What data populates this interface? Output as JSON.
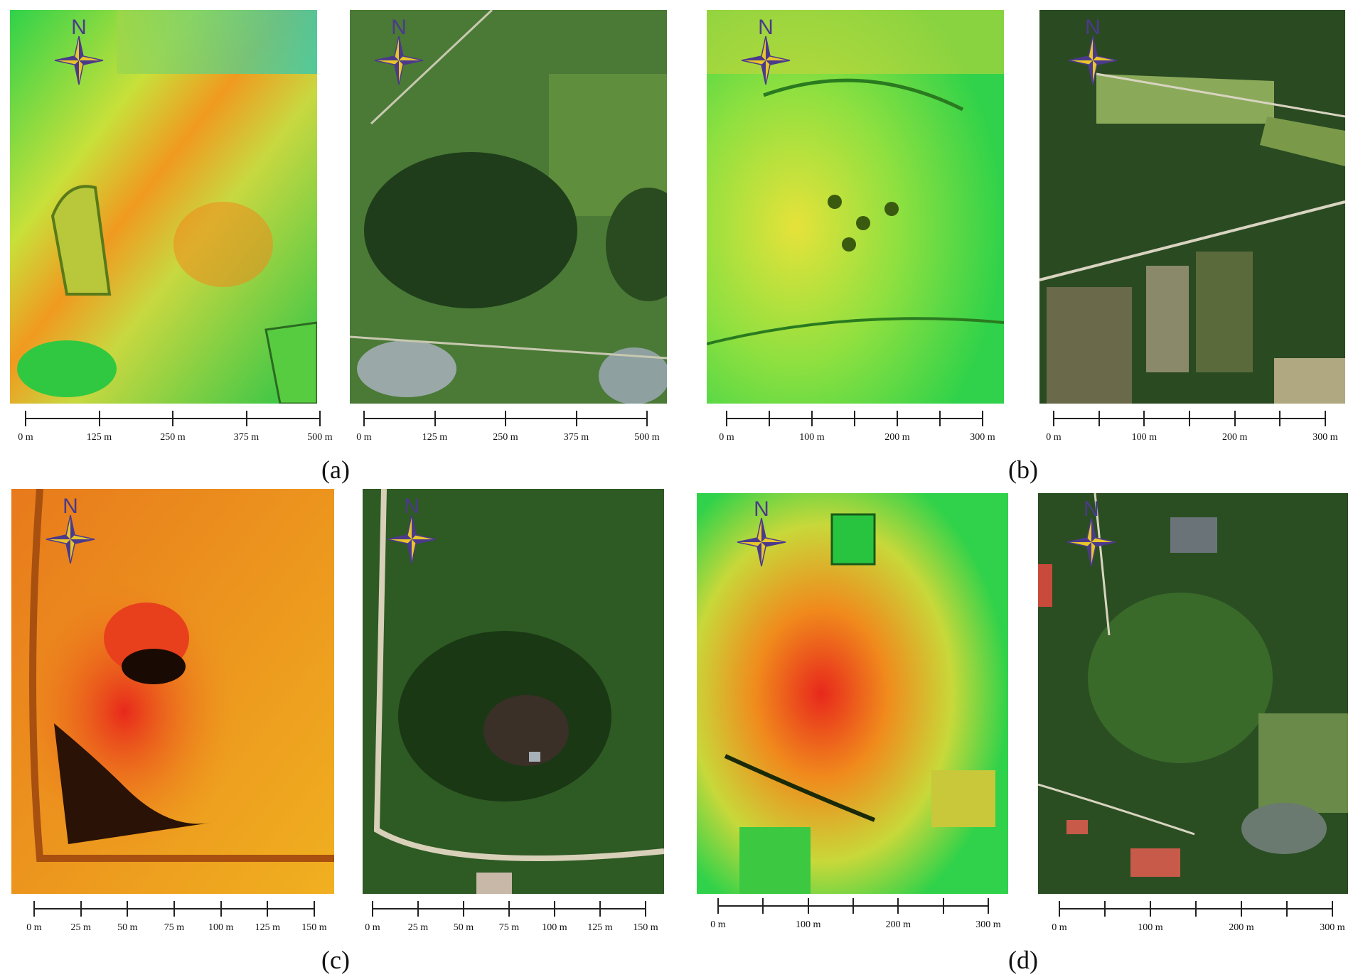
{
  "figure": {
    "compass_label": "N",
    "captions": [
      "(a)",
      "(b)",
      "(c)",
      "(d)"
    ],
    "scales": {
      "a": [
        "0 m",
        "125 m",
        "250 m",
        "375 m",
        "500 m"
      ],
      "b": [
        "0 m",
        "100 m",
        "200 m",
        "300 m"
      ],
      "c": [
        "0 m",
        "25 m",
        "50 m",
        "75 m",
        "100 m",
        "125 m",
        "150 m"
      ],
      "d": [
        "0 m",
        "100 m",
        "200 m",
        "300 m"
      ]
    }
  },
  "colors": {
    "dem_green": "#2fd24a",
    "dem_yellow": "#e6e23a",
    "dem_orange": "#f08a1c",
    "dem_red": "#e8281c",
    "dem_cyan": "#35c8b0",
    "ortho_dark": "#1f3d1a",
    "ortho_mid": "#3f6a2e",
    "ortho_light": "#7c9a5c",
    "water": "#9aa8a8",
    "compass_purple": "#4b3a8c",
    "compass_gold": "#e8c62a"
  }
}
